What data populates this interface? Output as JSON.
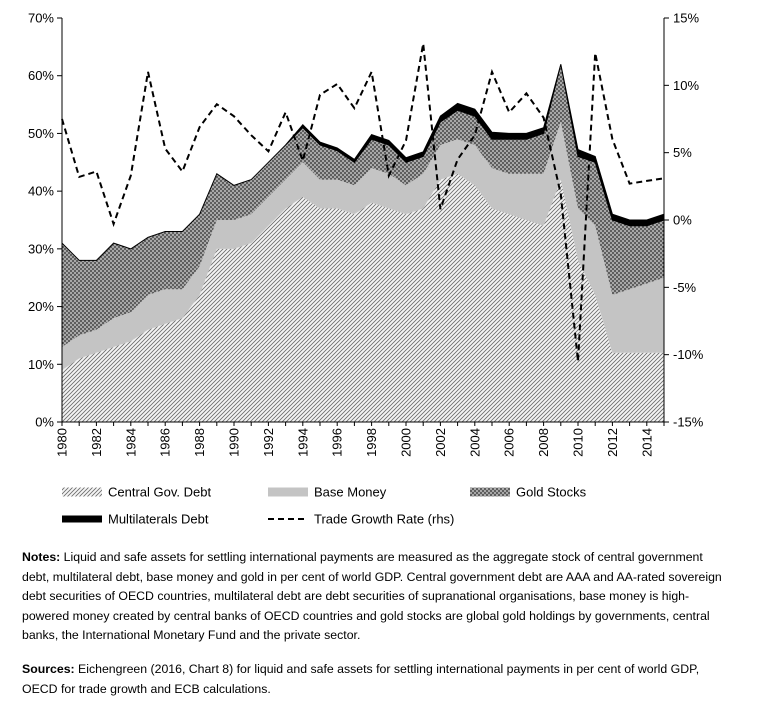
{
  "chart_data": {
    "type": "area",
    "title": "",
    "years": [
      1980,
      1981,
      1982,
      1983,
      1984,
      1985,
      1986,
      1987,
      1988,
      1989,
      1990,
      1991,
      1992,
      1993,
      1994,
      1995,
      1996,
      1997,
      1998,
      1999,
      2000,
      2001,
      2002,
      2003,
      2004,
      2005,
      2006,
      2007,
      2008,
      2009,
      2010,
      2011,
      2012,
      2013,
      2014,
      2015
    ],
    "x_tick_labels": [
      "1980",
      "1982",
      "1984",
      "1986",
      "1988",
      "1990",
      "1992",
      "1994",
      "1996",
      "1998",
      "2000",
      "2002",
      "2004",
      "2006",
      "2008",
      "2010",
      "2012",
      "2014"
    ],
    "y_left": {
      "ticks": [
        "0%",
        "10%",
        "20%",
        "30%",
        "40%",
        "50%",
        "60%",
        "70%"
      ],
      "ylim": [
        0,
        70
      ]
    },
    "y_right": {
      "ticks": [
        "-15%",
        "-10%",
        "-5%",
        "0%",
        "5%",
        "10%",
        "15%"
      ],
      "ylim": [
        -15,
        15
      ]
    },
    "stacked_series": [
      {
        "name": "Central Gov. Debt",
        "color": "#e8e8e8",
        "values": [
          9,
          11,
          12,
          13,
          14,
          16,
          17,
          18,
          22,
          30,
          30,
          31,
          34,
          37,
          39,
          37,
          37,
          36,
          38,
          37,
          36,
          37,
          42,
          43,
          41,
          37,
          36,
          35,
          34,
          42,
          28,
          22,
          12,
          12,
          12,
          12
        ]
      },
      {
        "name": "Base Money",
        "color": "#c4c4c4",
        "values": [
          4,
          4,
          4,
          5,
          5,
          6,
          6,
          5,
          5,
          5,
          5,
          5,
          5,
          5,
          6,
          5,
          5,
          5,
          6,
          6,
          5,
          6,
          6,
          6,
          7,
          7,
          7,
          8,
          9,
          10,
          9,
          12,
          10,
          11,
          12,
          13
        ]
      },
      {
        "name": "Gold Stocks",
        "color": "#707070",
        "values": [
          18,
          13,
          12,
          13,
          11,
          10,
          10,
          10,
          9,
          8,
          6,
          6,
          6,
          6,
          6,
          6,
          5,
          4,
          5,
          5,
          4,
          3,
          4,
          5,
          5,
          5,
          6,
          6,
          7,
          10,
          9,
          11,
          13,
          11,
          10,
          10
        ]
      },
      {
        "name": "Multilaterals Debt",
        "color": "#000000",
        "values": [
          0,
          0,
          0,
          0,
          0,
          0,
          0,
          0,
          0,
          0,
          0,
          0,
          0,
          0,
          0.5,
          0.5,
          0.5,
          0.5,
          0.8,
          0.8,
          0.8,
          0.8,
          1,
          1.2,
          1.2,
          1.2,
          1,
          1,
          1,
          0,
          1.2,
          1,
          1,
          1,
          1,
          1
        ]
      }
    ],
    "line_series": {
      "name": "Trade Growth Rate (rhs)",
      "axis": "right",
      "style": "dashed",
      "values": [
        7.5,
        3.2,
        3.6,
        -0.3,
        3.3,
        11,
        5.3,
        3.6,
        6.9,
        8.6,
        7.7,
        6.3,
        5.1,
        8.0,
        4.4,
        9.3,
        10.1,
        8.3,
        11,
        3.3,
        5.9,
        13.1,
        0.8,
        4.5,
        6.3,
        11,
        8,
        9.4,
        7.6,
        1.9,
        -10.5,
        12.4,
        6,
        2.7,
        2.9,
        3.1
      ]
    },
    "legend": [
      {
        "label": "Central Gov. Debt",
        "key": "central"
      },
      {
        "label": "Base Money",
        "key": "base"
      },
      {
        "label": "Gold Stocks",
        "key": "gold"
      },
      {
        "label": "Multilaterals Debt",
        "key": "multi"
      },
      {
        "label": "Trade Growth Rate (rhs)",
        "key": "trade"
      }
    ]
  },
  "notes": {
    "notes_label": "Notes:",
    "notes_text": " Liquid and safe assets for settling international payments are measured as the aggregate stock of central government debt, multilateral debt, base money and gold in per cent of world GDP. Central government debt are AAA and AA-rated sovereign debt securities of OECD countries, multilateral debt are debt securities of supranational organisations, base money is high-powered money created by central banks of OECD countries and gold stocks are global gold holdings by governments, central banks, the International Monetary Fund and the private sector.",
    "sources_label": "Sources:",
    "sources_text": " Eichengreen (2016, Chart 8) for liquid and safe assets for settling international payments in per cent of world GDP, OECD for trade growth and ECB calculations."
  }
}
